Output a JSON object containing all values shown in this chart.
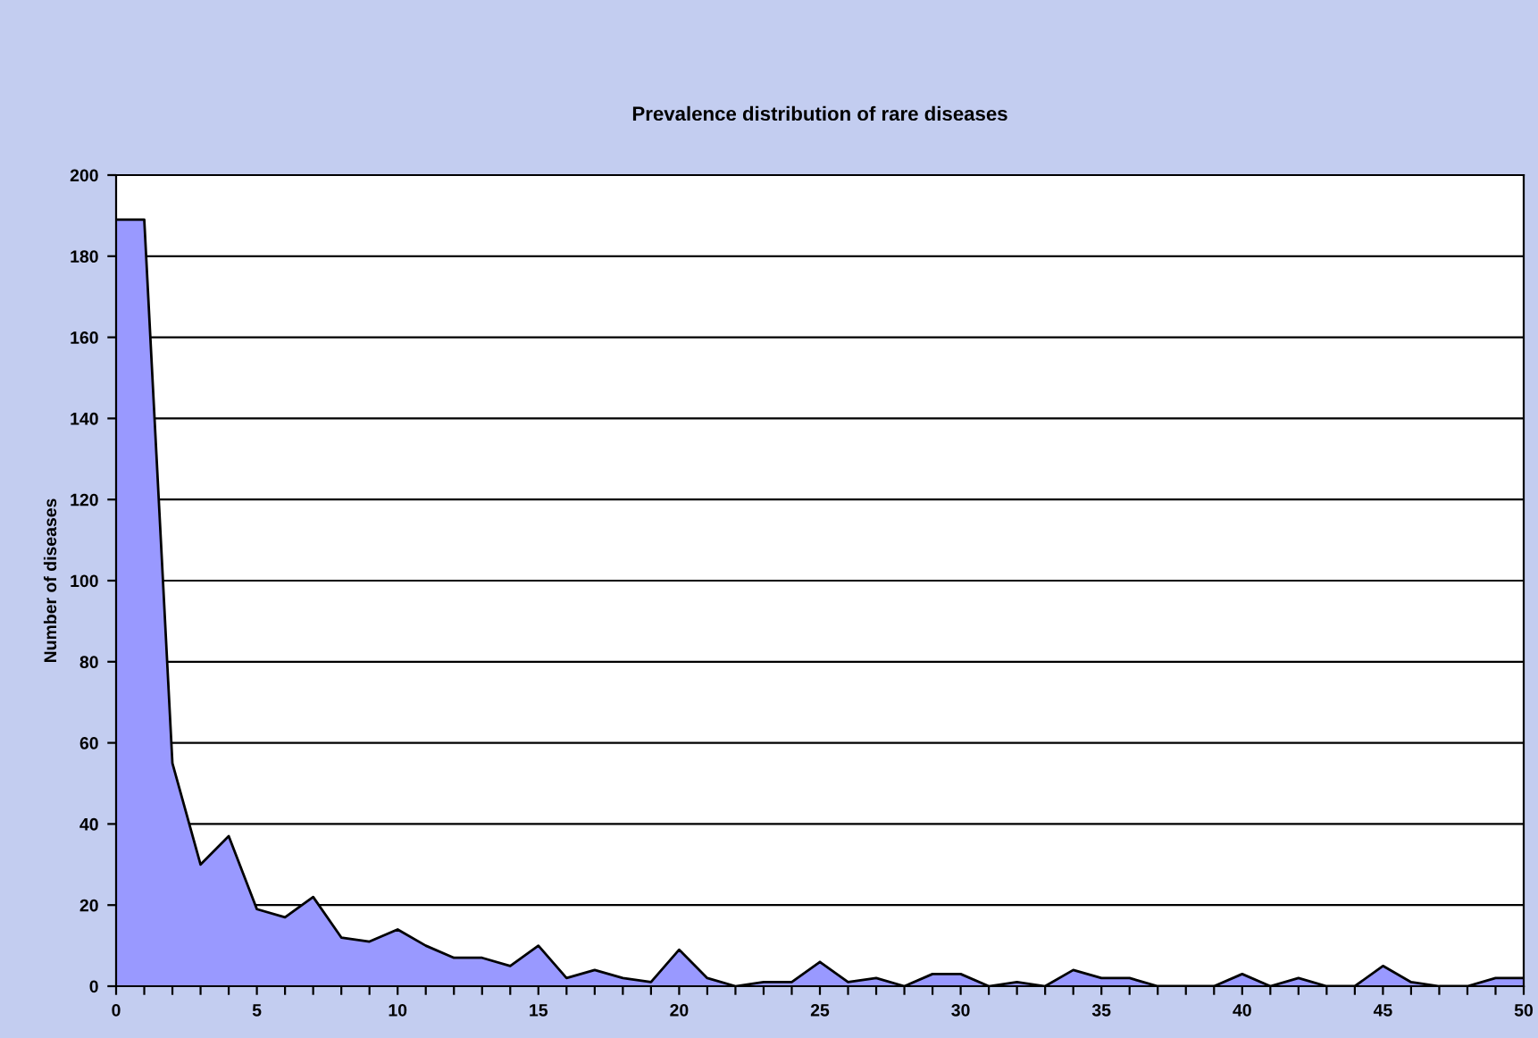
{
  "chart_data": {
    "type": "area",
    "title": "Prevalence distribution of rare diseases",
    "ylabel": "Number of diseases",
    "x": [
      0,
      1,
      2,
      3,
      4,
      5,
      6,
      7,
      8,
      9,
      10,
      11,
      12,
      13,
      14,
      15,
      16,
      17,
      18,
      19,
      20,
      21,
      22,
      23,
      24,
      25,
      26,
      27,
      28,
      29,
      30,
      31,
      32,
      33,
      34,
      35,
      36,
      37,
      38,
      39,
      40,
      41,
      42,
      43,
      44,
      45,
      46,
      47,
      48,
      49,
      50
    ],
    "series": [
      {
        "color": "#9999ff",
        "values": [
          189,
          189,
          55,
          30,
          37,
          19,
          17,
          22,
          12,
          11,
          14,
          10,
          7,
          7,
          5,
          10,
          2,
          4,
          2,
          1,
          9,
          2,
          0,
          1,
          1,
          6,
          1,
          2,
          0,
          3,
          3,
          0,
          1,
          0,
          4,
          2,
          2,
          0,
          0,
          0,
          3,
          0,
          2,
          0,
          0,
          5,
          1,
          0,
          0,
          2,
          2
        ]
      }
    ],
    "xlim": [
      0,
      50
    ],
    "xticks": [
      0,
      {
        "value": 1,
        "label": null
      },
      {
        "value": 2,
        "label": null
      },
      {
        "value": 3,
        "label": null
      },
      {
        "value": 4,
        "label": null
      },
      5,
      {
        "value": 6,
        "label": null
      },
      {
        "value": 7,
        "label": null
      },
      {
        "value": 8,
        "label": null
      },
      {
        "value": 9,
        "label": null
      },
      10,
      {
        "value": 11,
        "label": null
      },
      {
        "value": 12,
        "label": null
      },
      {
        "value": 13,
        "label": null
      },
      {
        "value": 14,
        "label": null
      },
      15,
      {
        "value": 16,
        "label": null
      },
      {
        "value": 17,
        "label": null
      },
      {
        "value": 18,
        "label": null
      },
      {
        "value": 19,
        "label": null
      },
      20,
      {
        "value": 21,
        "label": null
      },
      {
        "value": 22,
        "label": null
      },
      {
        "value": 23,
        "label": null
      },
      {
        "value": 24,
        "label": null
      },
      25,
      {
        "value": 26,
        "label": null
      },
      {
        "value": 27,
        "label": null
      },
      {
        "value": 28,
        "label": null
      },
      {
        "value": 29,
        "label": null
      },
      30,
      {
        "value": 31,
        "label": null
      },
      {
        "value": 32,
        "label": null
      },
      {
        "value": 33,
        "label": null
      },
      {
        "value": 34,
        "label": null
      },
      35,
      {
        "value": 36,
        "label": null
      },
      {
        "value": 37,
        "label": null
      },
      {
        "value": 38,
        "label": null
      },
      {
        "value": 39,
        "label": null
      },
      40,
      {
        "value": 41,
        "label": null
      },
      {
        "value": 42,
        "label": null
      },
      {
        "value": 43,
        "label": null
      },
      {
        "value": 44,
        "label": null
      },
      45,
      {
        "value": 46,
        "label": null
      },
      {
        "value": 47,
        "label": null
      },
      {
        "value": 48,
        "label": null
      },
      {
        "value": 49,
        "label": null
      },
      50
    ],
    "ylim": [
      0,
      200
    ],
    "yticks": [
      0,
      20,
      40,
      60,
      80,
      100,
      120,
      140,
      160,
      180,
      200
    ],
    "grid": "y"
  }
}
